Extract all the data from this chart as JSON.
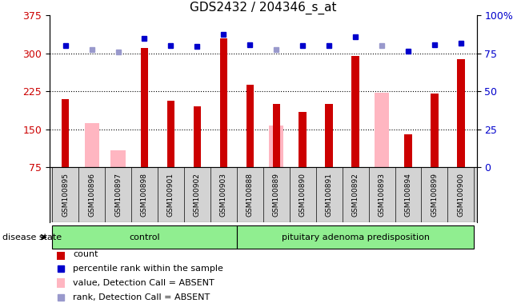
{
  "title": "GDS2432 / 204346_s_at",
  "samples": [
    "GSM100895",
    "GSM100896",
    "GSM100897",
    "GSM100898",
    "GSM100901",
    "GSM100902",
    "GSM100903",
    "GSM100888",
    "GSM100889",
    "GSM100890",
    "GSM100891",
    "GSM100892",
    "GSM100893",
    "GSM100894",
    "GSM100899",
    "GSM100900"
  ],
  "groups": [
    {
      "label": "control",
      "start": 0,
      "end": 7
    },
    {
      "label": "pituitary adenoma predisposition",
      "start": 7,
      "end": 16
    }
  ],
  "count_values": [
    210,
    null,
    null,
    310,
    207,
    195,
    330,
    238,
    200,
    185,
    200,
    295,
    null,
    140,
    220,
    288
  ],
  "absent_values": [
    null,
    162,
    108,
    null,
    null,
    null,
    null,
    null,
    157,
    null,
    null,
    null,
    222,
    null,
    null,
    null
  ],
  "rank_values": [
    315,
    308,
    303,
    330,
    315,
    313,
    338,
    317,
    307,
    315,
    315,
    333,
    315,
    305,
    317,
    320
  ],
  "absent_rank_values": [
    null,
    308,
    303,
    null,
    null,
    null,
    null,
    null,
    307,
    null,
    null,
    null,
    315,
    null,
    null,
    null
  ],
  "ylim_left": [
    75,
    375
  ],
  "ylim_right": [
    0,
    100
  ],
  "yticks_left": [
    75,
    150,
    225,
    300,
    375
  ],
  "yticks_right": [
    0,
    25,
    50,
    75,
    100
  ],
  "count_color": "#CC0000",
  "absent_color": "#FFB6C1",
  "rank_color": "#0000CC",
  "absent_rank_color": "#9999CC",
  "bar_width": 0.55,
  "disease_state_label": "disease state",
  "legend_items": [
    {
      "label": "count",
      "color": "#CC0000",
      "type": "bar"
    },
    {
      "label": "percentile rank within the sample",
      "color": "#0000CC",
      "type": "square"
    },
    {
      "label": "value, Detection Call = ABSENT",
      "color": "#FFB6C1",
      "type": "bar"
    },
    {
      "label": "rank, Detection Call = ABSENT",
      "color": "#9999CC",
      "type": "square"
    }
  ],
  "plot_bg": "#ffffff",
  "label_bg": "#D3D3D3",
  "group_bg": "#90EE90",
  "fig_bg": "#ffffff"
}
